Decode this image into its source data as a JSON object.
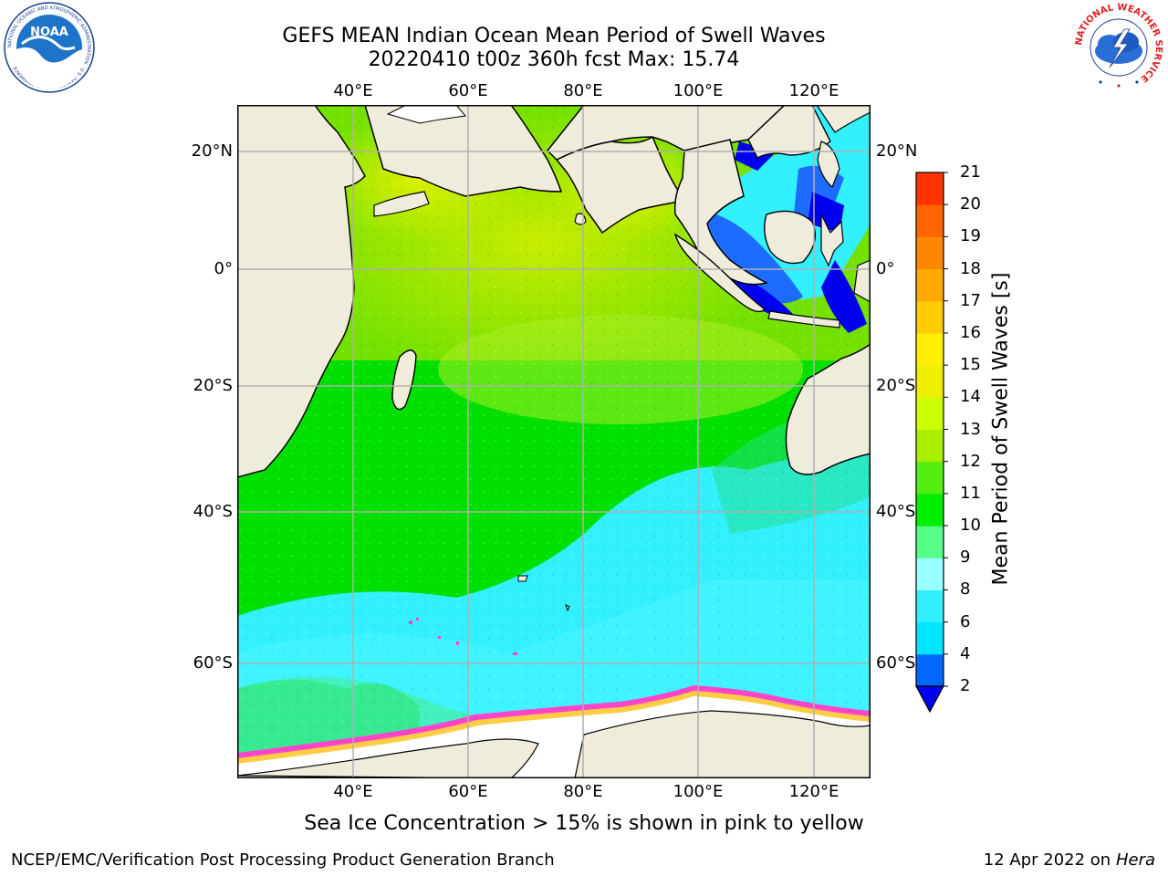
{
  "title": {
    "line1": "GEFS MEAN Indian Ocean Mean Period of Swell Waves",
    "line2": "20220410 t00z 360h fcst   Max: 15.74"
  },
  "map": {
    "lon_labels": [
      "40°E",
      "60°E",
      "80°E",
      "100°E",
      "120°E"
    ],
    "lat_labels": [
      "20°N",
      "0°",
      "20°S",
      "40°S",
      "60°S"
    ],
    "colors": {
      "land": "#efecdc",
      "sea_ice": "#ff44cc",
      "grid": "#b0b0b0"
    }
  },
  "colorbar": {
    "label": "Mean Period of Swell Waves [s]",
    "ticks": [
      "2",
      "4",
      "6",
      "8",
      "9",
      "10",
      "11",
      "12",
      "13",
      "14",
      "15",
      "16",
      "17",
      "18",
      "19",
      "20",
      "21"
    ],
    "colors": [
      "#0066ff",
      "#00e5ff",
      "#33f0ff",
      "#99ffff",
      "#55ff88",
      "#00ee00",
      "#55ee11",
      "#aaee00",
      "#ccff00",
      "#eeee00",
      "#ffee00",
      "#ffcc00",
      "#ffaa00",
      "#ff8800",
      "#ff6600",
      "#ff3300",
      "#ff0000"
    ],
    "extend_color": "#0000ee"
  },
  "caption": "Sea Ice Concentration > 15% is shown in pink to yellow",
  "footer": {
    "left": "NCEP/EMC/Verification Post Processing Product Generation Branch",
    "date": "12 Apr 2022 on",
    "machine": "Hera"
  },
  "logos": {
    "noaa_text": "NOAA",
    "noaa_ring": "NATIONAL OCEANIC AND ATMOSPHERIC ADMINISTRATION · U.S. DEPARTMENT OF COMMERCE",
    "nws_ring": "NATIONAL WEATHER SERVICE"
  }
}
